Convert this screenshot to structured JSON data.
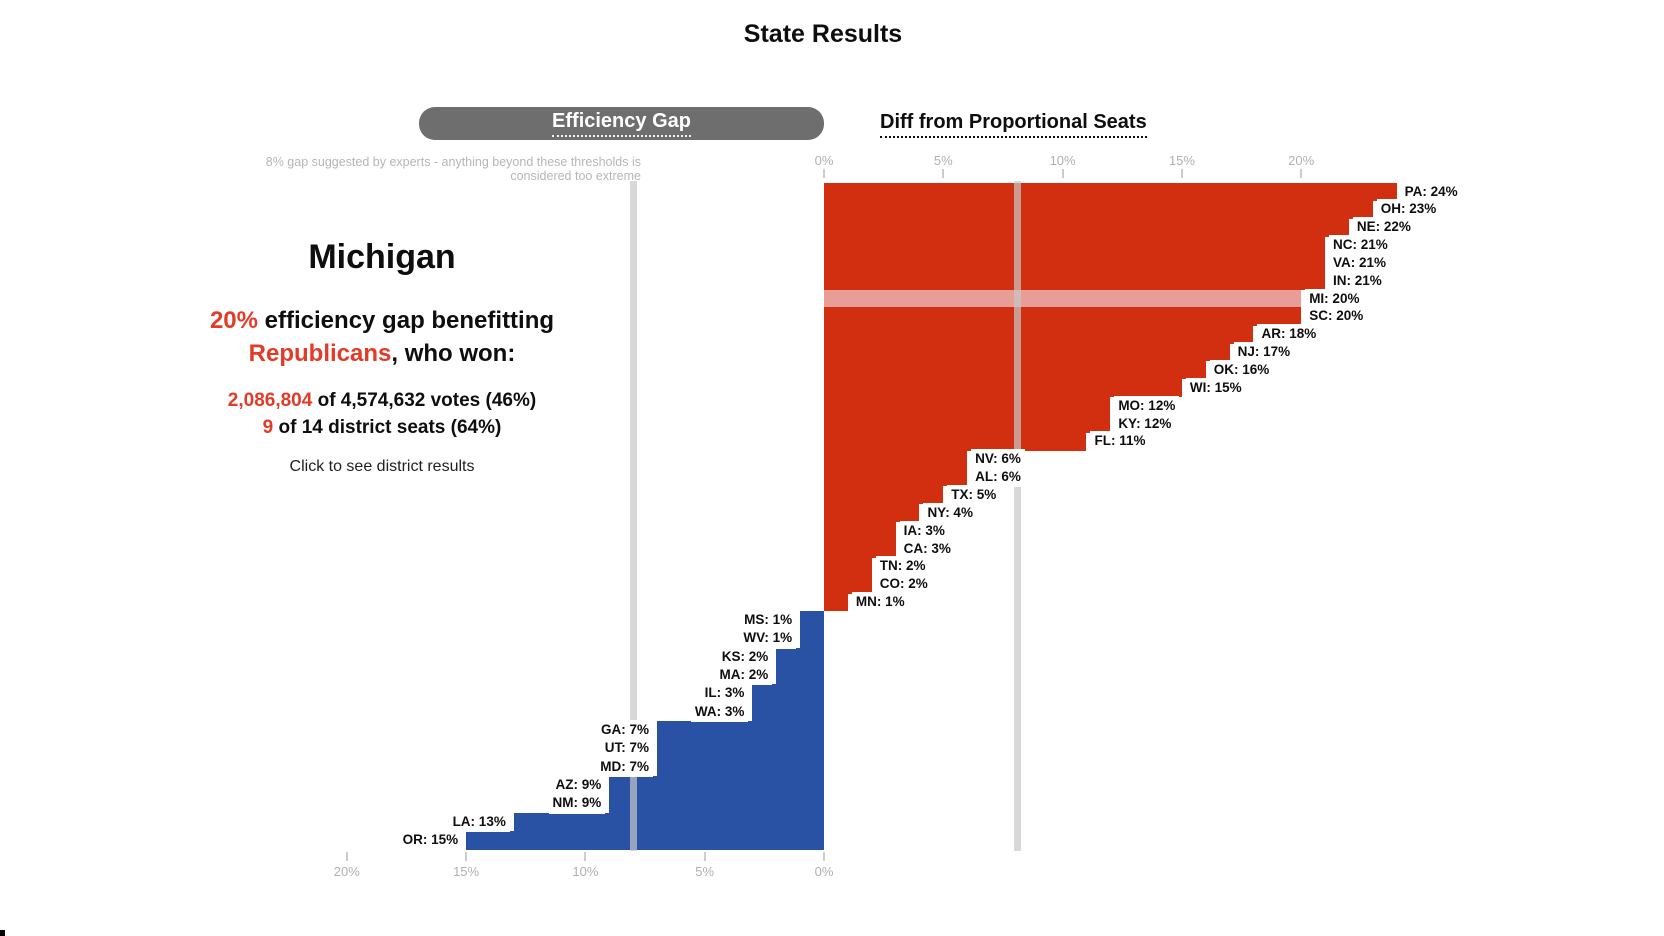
{
  "header": {
    "title": "State Results"
  },
  "toggle": {
    "efficiency_gap": "Efficiency Gap",
    "diff_from_proportional": "Diff from Proportional Seats"
  },
  "threshold_note": {
    "line1": "8% gap suggested by experts - anything beyond these thresholds is",
    "line2": "considered too extreme"
  },
  "state_detail": {
    "name": "Michigan",
    "gap_pct": "20%",
    "gap_rest": " efficiency gap benefitting",
    "party": "Republicans",
    "party_rest": ", who won:",
    "votes_won": "2,086,804",
    "votes_rest": " of 4,574,632 votes (46%)",
    "seats_won": "9",
    "seats_rest": " of 14 district seats (64%)",
    "hint": "Click to see district results"
  },
  "chart_data": {
    "type": "bar",
    "title": "State Results",
    "orientation": "horizontal mirrored step chart: Republican-benefitting states extend right from shared 0% axis, Democrat-benefitting states extend left",
    "unit": "percent efficiency gap",
    "threshold_pct": 8,
    "selected_state": "MI",
    "bar_color_republican": "#d22f10",
    "bar_color_democrat": "#2a52a4",
    "highlight_color": "#e89e96",
    "axis_top": {
      "side": "republican",
      "ticks": [
        {
          "value": 0,
          "label": "0%"
        },
        {
          "value": 5,
          "label": "5%"
        },
        {
          "value": 10,
          "label": "10%"
        },
        {
          "value": 15,
          "label": "15%"
        },
        {
          "value": 20,
          "label": "20%"
        }
      ]
    },
    "axis_bottom": {
      "side": "democrat",
      "ticks": [
        {
          "value": 20,
          "label": "20%"
        },
        {
          "value": 15,
          "label": "15%"
        },
        {
          "value": 10,
          "label": "10%"
        },
        {
          "value": 5,
          "label": "5%"
        },
        {
          "value": 0,
          "label": "0%"
        }
      ]
    },
    "republican_states": [
      {
        "state": "PA",
        "value": 24,
        "label": "PA: 24%"
      },
      {
        "state": "OH",
        "value": 23,
        "label": "OH: 23%"
      },
      {
        "state": "NE",
        "value": 22,
        "label": "NE: 22%"
      },
      {
        "state": "NC",
        "value": 21,
        "label": "NC: 21%"
      },
      {
        "state": "VA",
        "value": 21,
        "label": "VA: 21%"
      },
      {
        "state": "IN",
        "value": 21,
        "label": "IN: 21%"
      },
      {
        "state": "MI",
        "value": 20,
        "label": "MI: 20%",
        "highlight": true
      },
      {
        "state": "SC",
        "value": 20,
        "label": "SC: 20%"
      },
      {
        "state": "AR",
        "value": 18,
        "label": "AR: 18%"
      },
      {
        "state": "NJ",
        "value": 17,
        "label": "NJ: 17%"
      },
      {
        "state": "OK",
        "value": 16,
        "label": "OK: 16%"
      },
      {
        "state": "WI",
        "value": 15,
        "label": "WI: 15%"
      },
      {
        "state": "MO",
        "value": 12,
        "label": "MO: 12%"
      },
      {
        "state": "KY",
        "value": 12,
        "label": "KY: 12%"
      },
      {
        "state": "FL",
        "value": 11,
        "label": "FL: 11%"
      },
      {
        "state": "NV",
        "value": 6,
        "label": "NV: 6%"
      },
      {
        "state": "AL",
        "value": 6,
        "label": "AL: 6%"
      },
      {
        "state": "TX",
        "value": 5,
        "label": "TX: 5%"
      },
      {
        "state": "NY",
        "value": 4,
        "label": "NY: 4%"
      },
      {
        "state": "IA",
        "value": 3,
        "label": "IA: 3%"
      },
      {
        "state": "CA",
        "value": 3,
        "label": "CA: 3%"
      },
      {
        "state": "TN",
        "value": 2,
        "label": "TN: 2%"
      },
      {
        "state": "CO",
        "value": 2,
        "label": "CO: 2%"
      },
      {
        "state": "MN",
        "value": 1,
        "label": "MN: 1%"
      }
    ],
    "democrat_states": [
      {
        "state": "MS",
        "value": 1,
        "label": "MS: 1%"
      },
      {
        "state": "WV",
        "value": 1,
        "label": "WV: 1%"
      },
      {
        "state": "KS",
        "value": 2,
        "label": "KS: 2%"
      },
      {
        "state": "MA",
        "value": 2,
        "label": "MA: 2%"
      },
      {
        "state": "IL",
        "value": 3,
        "label": "IL: 3%"
      },
      {
        "state": "WA",
        "value": 3,
        "label": "WA: 3%"
      },
      {
        "state": "GA",
        "value": 7,
        "label": "GA: 7%"
      },
      {
        "state": "UT",
        "value": 7,
        "label": "UT: 7%"
      },
      {
        "state": "MD",
        "value": 7,
        "label": "MD: 7%"
      },
      {
        "state": "AZ",
        "value": 9,
        "label": "AZ: 9%"
      },
      {
        "state": "NM",
        "value": 9,
        "label": "NM: 9%"
      },
      {
        "state": "LA",
        "value": 13,
        "label": "LA: 13%"
      },
      {
        "state": "OR",
        "value": 15,
        "label": "OR: 15%"
      }
    ]
  },
  "colors": {
    "accent_red_text": "#e23b28",
    "bar_red": "#d22f10",
    "bar_blue": "#2a52a4",
    "bar_highlight_pink": "#e89e96",
    "button_gray": "#6e6e6e",
    "axis_gray": "#b0b0b0"
  }
}
